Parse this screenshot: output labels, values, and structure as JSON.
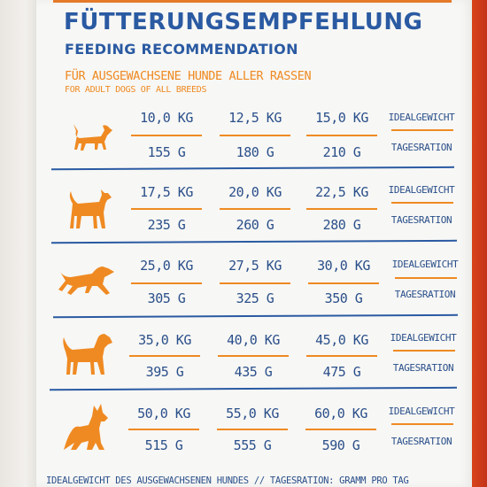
{
  "title_de": "FÜTTERUNGSEMPFEHLUNG",
  "title_en": "FEEDING RECOMMENDATION",
  "subtitle_de": "FÜR AUSGEWACHSENE HUNDE ALLER RASSEN",
  "subtitle_en": "FOR ADULT DOGS OF ALL BREEDS",
  "labels": {
    "weight": "IDEALGEWICHT",
    "ration": "TAGESRATION"
  },
  "rows": [
    {
      "dog_icon": "small-dog-icon",
      "weights": [
        "10,0 KG",
        "12,5 KG",
        "15,0 KG"
      ],
      "rations": [
        "155 G",
        "180 G",
        "210 G"
      ]
    },
    {
      "dog_icon": "medium-dog-icon",
      "weights": [
        "17,5 KG",
        "20,0 KG",
        "22,5 KG"
      ],
      "rations": [
        "235 G",
        "260 G",
        "280 G"
      ]
    },
    {
      "dog_icon": "running-dog-icon",
      "weights": [
        "25,0 KG",
        "27,5 KG",
        "30,0 KG"
      ],
      "rations": [
        "305 G",
        "325 G",
        "350 G"
      ]
    },
    {
      "dog_icon": "large-dog-icon",
      "weights": [
        "35,0 KG",
        "40,0 KG",
        "45,0 KG"
      ],
      "rations": [
        "395 G",
        "435 G",
        "475 G"
      ]
    },
    {
      "dog_icon": "shepherd-dog-icon",
      "weights": [
        "50,0 KG",
        "55,0 KG",
        "60,0 KG"
      ],
      "rations": [
        "515 G",
        "555 G",
        "590 G"
      ]
    }
  ],
  "footer": "IDEALGEWICHT DES AUSGEWACHSENEN HUNDES // TAGESRATION: GRAMM PRO TAG",
  "colors": {
    "blue": "#2a5aa2",
    "orange": "#ef8a22"
  }
}
